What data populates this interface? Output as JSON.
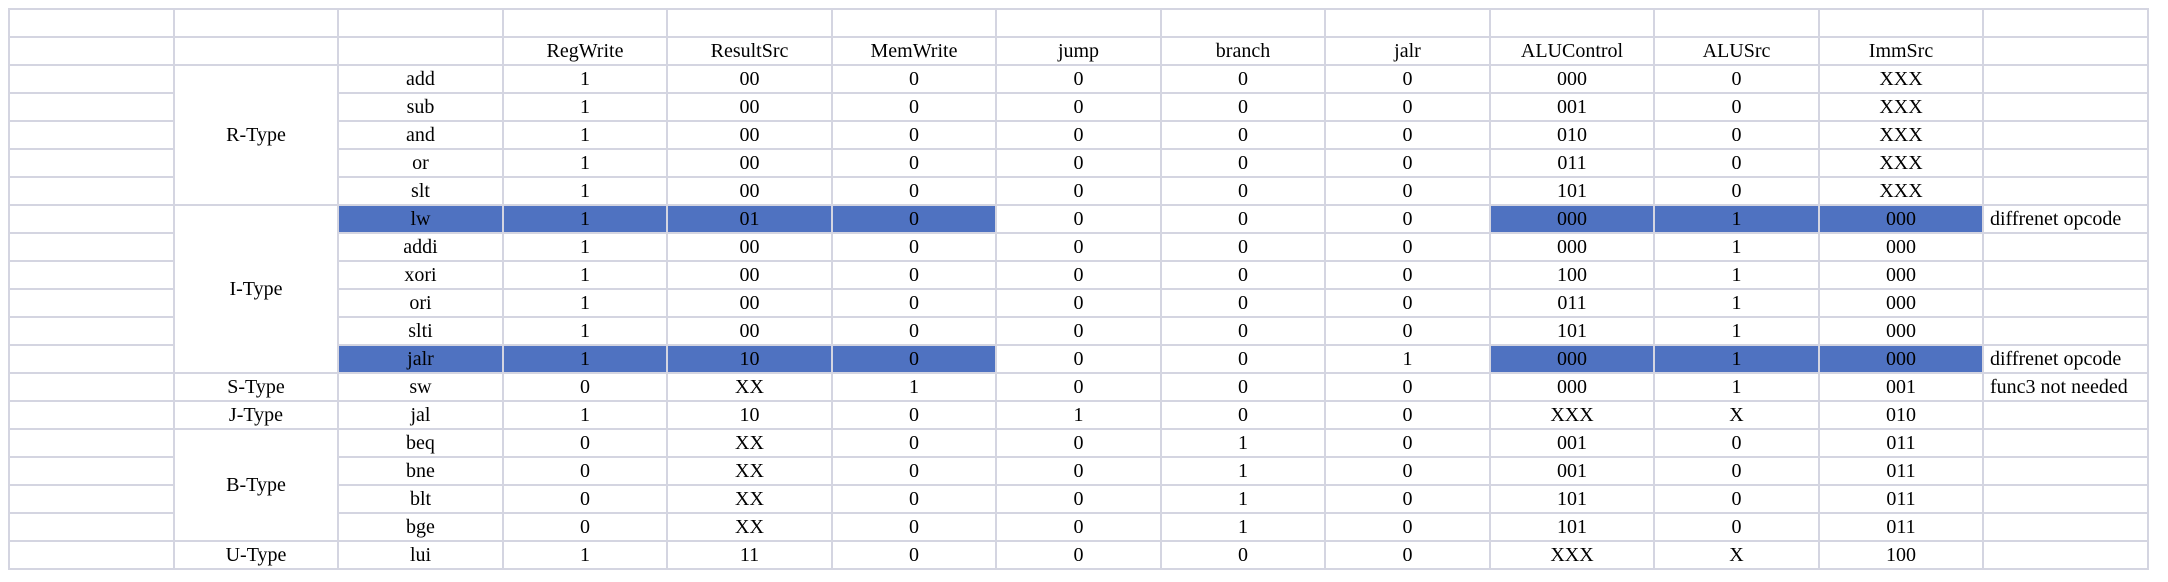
{
  "header": [
    "RegWrite",
    "ResultSrc",
    "MemWrite",
    "jump",
    "branch",
    "jalr",
    "ALUControl",
    "ALUSrc",
    "ImmSrc"
  ],
  "groups": [
    {
      "type": "R-Type",
      "rows": [
        {
          "instr": "add",
          "values": [
            "1",
            "00",
            "0",
            "0",
            "0",
            "0",
            "000",
            "0",
            "XXX"
          ],
          "note": "",
          "highlight": []
        },
        {
          "instr": "sub",
          "values": [
            "1",
            "00",
            "0",
            "0",
            "0",
            "0",
            "001",
            "0",
            "XXX"
          ],
          "note": "",
          "highlight": []
        },
        {
          "instr": "and",
          "values": [
            "1",
            "00",
            "0",
            "0",
            "0",
            "0",
            "010",
            "0",
            "XXX"
          ],
          "note": "",
          "highlight": []
        },
        {
          "instr": "or",
          "values": [
            "1",
            "00",
            "0",
            "0",
            "0",
            "0",
            "011",
            "0",
            "XXX"
          ],
          "note": "",
          "highlight": []
        },
        {
          "instr": "slt",
          "values": [
            "1",
            "00",
            "0",
            "0",
            "0",
            "0",
            "101",
            "0",
            "XXX"
          ],
          "note": "",
          "highlight": []
        }
      ]
    },
    {
      "type": "I-Type",
      "rows": [
        {
          "instr": "lw",
          "values": [
            "1",
            "01",
            "0",
            "0",
            "0",
            "0",
            "000",
            "1",
            "000"
          ],
          "note": "diffrenet opcode",
          "highlight": [
            0,
            1,
            2,
            3,
            7,
            8,
            9
          ]
        },
        {
          "instr": "addi",
          "values": [
            "1",
            "00",
            "0",
            "0",
            "0",
            "0",
            "000",
            "1",
            "000"
          ],
          "note": "",
          "highlight": []
        },
        {
          "instr": "xori",
          "values": [
            "1",
            "00",
            "0",
            "0",
            "0",
            "0",
            "100",
            "1",
            "000"
          ],
          "note": "",
          "highlight": []
        },
        {
          "instr": "ori",
          "values": [
            "1",
            "00",
            "0",
            "0",
            "0",
            "0",
            "011",
            "1",
            "000"
          ],
          "note": "",
          "highlight": []
        },
        {
          "instr": "slti",
          "values": [
            "1",
            "00",
            "0",
            "0",
            "0",
            "0",
            "101",
            "1",
            "000"
          ],
          "note": "",
          "highlight": []
        },
        {
          "instr": "jalr",
          "values": [
            "1",
            "10",
            "0",
            "0",
            "0",
            "1",
            "000",
            "1",
            "000"
          ],
          "note": "diffrenet opcode",
          "highlight": [
            0,
            1,
            2,
            3,
            7,
            8,
            9
          ]
        }
      ]
    },
    {
      "type": "S-Type",
      "rows": [
        {
          "instr": "sw",
          "values": [
            "0",
            "XX",
            "1",
            "0",
            "0",
            "0",
            "000",
            "1",
            "001"
          ],
          "note": "func3 not needed",
          "highlight": []
        }
      ]
    },
    {
      "type": "J-Type",
      "rows": [
        {
          "instr": "jal",
          "values": [
            "1",
            "10",
            "0",
            "1",
            "0",
            "0",
            "XXX",
            "X",
            "010"
          ],
          "note": "",
          "highlight": []
        }
      ]
    },
    {
      "type": "B-Type",
      "rows": [
        {
          "instr": "beq",
          "values": [
            "0",
            "XX",
            "0",
            "0",
            "1",
            "0",
            "001",
            "0",
            "011"
          ],
          "note": "",
          "highlight": []
        },
        {
          "instr": "bne",
          "values": [
            "0",
            "XX",
            "0",
            "0",
            "1",
            "0",
            "001",
            "0",
            "011"
          ],
          "note": "",
          "highlight": []
        },
        {
          "instr": "blt",
          "values": [
            "0",
            "XX",
            "0",
            "0",
            "1",
            "0",
            "101",
            "0",
            "011"
          ],
          "note": "",
          "highlight": []
        },
        {
          "instr": "bge",
          "values": [
            "0",
            "XX",
            "0",
            "0",
            "1",
            "0",
            "101",
            "0",
            "011"
          ],
          "note": "",
          "highlight": []
        }
      ]
    },
    {
      "type": "U-Type",
      "rows": [
        {
          "instr": "lui",
          "values": [
            "1",
            "11",
            "0",
            "0",
            "0",
            "0",
            "XXX",
            "X",
            "100"
          ],
          "note": "",
          "highlight": []
        }
      ]
    }
  ],
  "colors": {
    "highlight": "#4f72c1",
    "grid": "#d4d5e1"
  }
}
